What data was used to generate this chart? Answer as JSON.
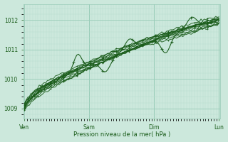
{
  "bg_color": "#cce8dc",
  "plot_bg_color": "#cce8dc",
  "grid_major_color": "#99ccb8",
  "grid_minor_color": "#b8dece",
  "line_color": "#1a5c1a",
  "xlabel": "Pression niveau de la mer( hPa )",
  "xlabel_color": "#1a5c1a",
  "tick_color": "#1a5c1a",
  "spine_color": "#99ccb8",
  "yticks": [
    1009,
    1010,
    1011,
    1012
  ],
  "xtick_labels": [
    "Ven",
    "Sam",
    "Dim",
    "Lun"
  ],
  "xtick_positions": [
    0,
    1,
    2,
    3
  ],
  "xlim": [
    -0.02,
    3.02
  ],
  "ylim": [
    1008.65,
    1012.55
  ],
  "x_start": 0.0,
  "x_end": 3.0,
  "figsize": [
    3.2,
    2.0
  ],
  "dpi": 100
}
